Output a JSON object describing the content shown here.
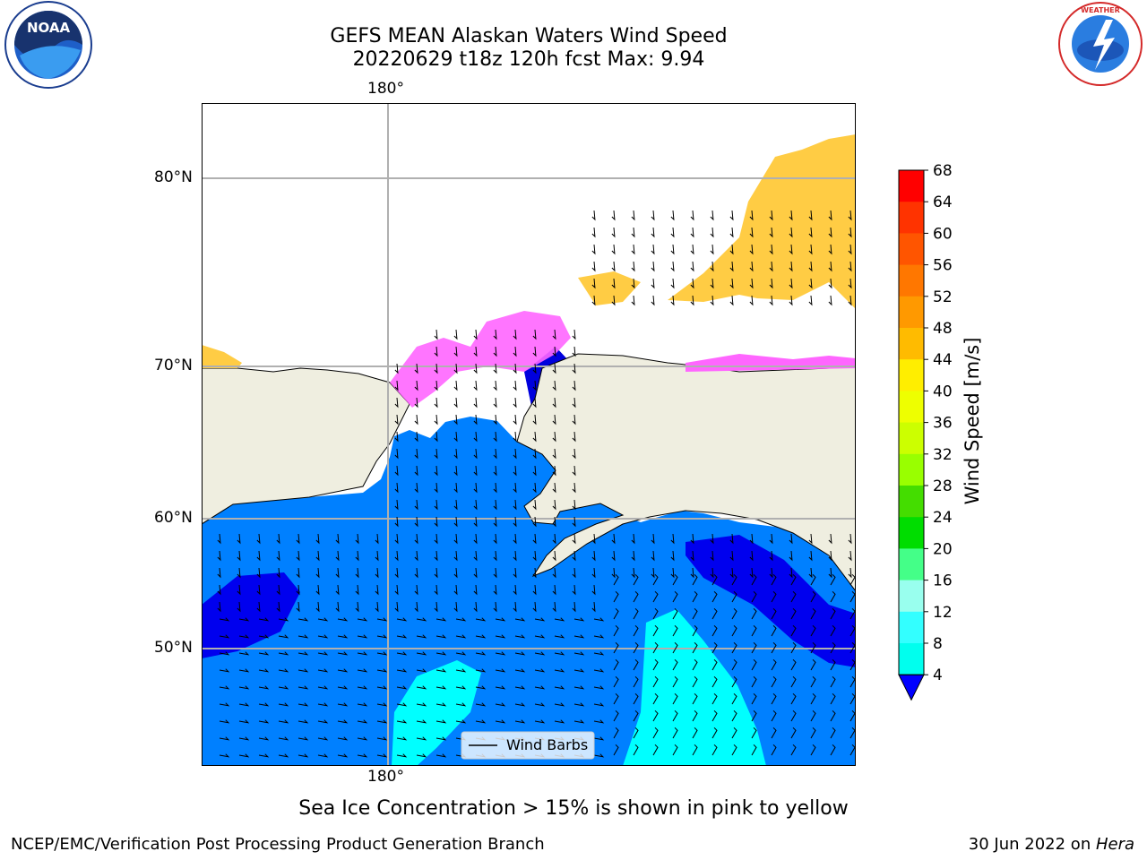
{
  "title": {
    "line1": "GEFS MEAN Alaskan Waters Wind Speed",
    "line2": "20220629 t18z 120h fcst   Max: 9.94"
  },
  "gridlabels": {
    "lon_top": "180°",
    "lon_bottom": "180°",
    "lat": [
      "80°N",
      "70°N",
      "60°N",
      "50°N"
    ]
  },
  "legend": {
    "label": "Wind Barbs"
  },
  "colorbar": {
    "label": "Wind Speed [m/s]",
    "ticks": [
      "68",
      "64",
      "60",
      "56",
      "52",
      "48",
      "44",
      "40",
      "36",
      "32",
      "28",
      "24",
      "20",
      "16",
      "12",
      "8",
      "4"
    ],
    "colors": [
      "#ff0000",
      "#ff3300",
      "#ff5500",
      "#ff7700",
      "#ff9900",
      "#ffbb00",
      "#ffee00",
      "#eeff00",
      "#ccff00",
      "#99ff00",
      "#44dd00",
      "#00dd00",
      "#44ff88",
      "#99ffee",
      "#33ffff",
      "#00ffee",
      "#0088ff"
    ],
    "extend_color": "#0000ff"
  },
  "note": "Sea Ice Concentration > 15% is shown in pink to yellow",
  "footer": {
    "left": "NCEP/EMC/Verification Post Processing Product Generation Branch",
    "date": "30 Jun 2022 on ",
    "host": "Hera"
  },
  "logos": {
    "noaa": "NOAA",
    "nws": "NATIONAL WEATHER SERVICE"
  },
  "colors": {
    "land": "#efeee0",
    "ocean_base": "#0080ff",
    "ocean_strong": "#0000ee",
    "ocean_fast": "#00ffff",
    "ice_pink": "#ff66ff",
    "ice_orange": "#ffcc44"
  }
}
